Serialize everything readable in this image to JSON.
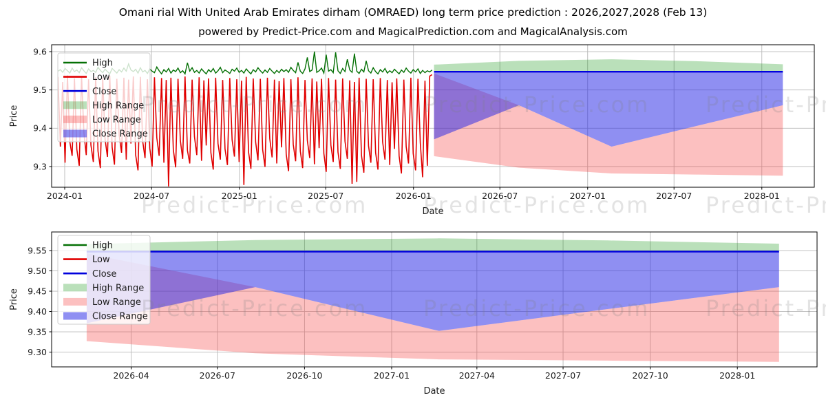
{
  "page": {
    "title": "Omani rial With United Arab Emirates dirham (OMRAED) long term price prediction : 2026,2027,2028 (Feb 13)",
    "subtitle": "powered by Predict-Price.com and MagicalPrediction.com and MagicalAnalysis.com",
    "background": "#ffffff"
  },
  "watermark": {
    "text": "Predict-Price.com"
  },
  "colors": {
    "high": "#047004",
    "low": "#e00000",
    "close": "#0000dd",
    "high_range": "rgba(0,140,0,0.27)",
    "low_range": "rgba(245,70,70,0.34)",
    "close_range": "rgba(40,40,230,0.52)",
    "grid": "#b8b8b8",
    "spine": "#000000",
    "text": "#1a1a1a"
  },
  "legend_items": [
    {
      "label": "High",
      "kind": "line",
      "color_key": "high"
    },
    {
      "label": "Low",
      "kind": "line",
      "color_key": "low"
    },
    {
      "label": "Close",
      "kind": "line",
      "color_key": "close"
    },
    {
      "label": "High Range",
      "kind": "patch",
      "color_key": "high_range"
    },
    {
      "label": "Low Range",
      "kind": "patch",
      "color_key": "low_range"
    },
    {
      "label": "Close Range",
      "kind": "patch",
      "color_key": "close_range"
    }
  ],
  "chart_data": {
    "type": "line",
    "title": "Omani rial With United Arab Emirates dirham (OMRAED) long term price prediction : 2026,2027,2028 (Feb 13)",
    "day_zero": "2024-01-01",
    "historical": {
      "start_date": "2023-12-18",
      "end_date": "2026-02-13",
      "first_day_offset": -14,
      "step_days": 4.93,
      "high": [
        9.549,
        9.553,
        9.546,
        9.556,
        9.55,
        9.544,
        9.557,
        9.548,
        9.552,
        9.545,
        9.558,
        9.55,
        9.543,
        9.555,
        9.548,
        9.551,
        9.546,
        9.559,
        9.551,
        9.545,
        9.554,
        9.548,
        9.542,
        9.556,
        9.55,
        9.544,
        9.553,
        9.547,
        9.557,
        9.549,
        9.568,
        9.552,
        9.548,
        9.554,
        9.544,
        9.558,
        9.547,
        9.551,
        9.543,
        9.555,
        9.549,
        9.545,
        9.56,
        9.55,
        9.542,
        9.553,
        9.547,
        9.556,
        9.544,
        9.552,
        9.548,
        9.557,
        9.545,
        9.55,
        9.542,
        9.571,
        9.549,
        9.558,
        9.546,
        9.551,
        9.544,
        9.555,
        9.548,
        9.542,
        9.553,
        9.547,
        9.556,
        9.544,
        9.55,
        9.559,
        9.545,
        9.552,
        9.548,
        9.543,
        9.554,
        9.549,
        9.557,
        9.546,
        9.551,
        9.544,
        9.555,
        9.548,
        9.542,
        9.553,
        9.547,
        9.558,
        9.55,
        9.544,
        9.552,
        9.546,
        9.556,
        9.549,
        9.543,
        9.551,
        9.545,
        9.554,
        9.548,
        9.553,
        9.546,
        9.559,
        9.551,
        9.545,
        9.572,
        9.549,
        9.543,
        9.555,
        9.585,
        9.548,
        9.552,
        9.6,
        9.546,
        9.55,
        9.557,
        9.544,
        9.592,
        9.549,
        9.553,
        9.545,
        9.598,
        9.55,
        9.543,
        9.556,
        9.548,
        9.58,
        9.552,
        9.546,
        9.595,
        9.549,
        9.543,
        9.554,
        9.547,
        9.576,
        9.55,
        9.544,
        9.558,
        9.548,
        9.542,
        9.553,
        9.547,
        9.556,
        9.544,
        9.55,
        9.545,
        9.554,
        9.548,
        9.542,
        9.552,
        9.546,
        9.557,
        9.549,
        9.544,
        9.553,
        9.547,
        9.555,
        9.543,
        9.551,
        9.545,
        9.55,
        9.547,
        9.552
      ],
      "low": [
        9.534,
        9.352,
        9.521,
        9.31,
        9.538,
        9.365,
        9.328,
        9.53,
        9.345,
        9.302,
        9.536,
        9.388,
        9.33,
        9.528,
        9.356,
        9.312,
        9.533,
        9.34,
        9.296,
        9.531,
        9.372,
        9.325,
        9.537,
        9.35,
        9.305,
        9.529,
        9.382,
        9.336,
        9.532,
        9.318,
        9.527,
        9.36,
        9.535,
        9.33,
        9.29,
        9.534,
        9.366,
        9.322,
        9.528,
        9.348,
        9.3,
        9.533,
        9.375,
        9.328,
        9.531,
        9.31,
        9.526,
        9.248,
        9.532,
        9.344,
        9.298,
        9.529,
        9.368,
        9.32,
        9.535,
        9.342,
        9.308,
        9.527,
        9.378,
        9.33,
        9.533,
        9.315,
        9.525,
        9.355,
        9.53,
        9.336,
        9.292,
        9.532,
        9.36,
        9.318,
        9.526,
        9.346,
        9.304,
        9.531,
        9.37,
        9.326,
        9.528,
        9.312,
        9.524,
        9.252,
        9.534,
        9.338,
        9.294,
        9.53,
        9.364,
        9.316,
        9.529,
        9.344,
        9.299,
        9.532,
        9.373,
        9.324,
        9.527,
        9.308,
        9.523,
        9.35,
        9.531,
        9.332,
        9.288,
        9.528,
        9.358,
        9.314,
        9.533,
        9.34,
        9.296,
        9.526,
        9.368,
        9.322,
        9.53,
        9.306,
        9.522,
        9.348,
        9.529,
        9.334,
        9.286,
        9.531,
        9.356,
        9.312,
        9.527,
        9.338,
        9.294,
        9.53,
        9.366,
        9.32,
        9.525,
        9.255,
        9.521,
        9.26,
        9.532,
        9.33,
        9.284,
        9.529,
        9.354,
        9.31,
        9.528,
        9.336,
        9.292,
        9.531,
        9.364,
        9.318,
        9.526,
        9.304,
        9.52,
        9.346,
        9.53,
        9.328,
        9.282,
        9.527,
        9.352,
        9.308,
        9.532,
        9.334,
        9.29,
        9.529,
        9.362,
        9.272,
        9.524,
        9.302,
        9.536,
        9.54
      ]
    },
    "prediction": {
      "start_date": "2026-02-13",
      "end_date": "2028-02-13",
      "start_day_offset": 774,
      "t_days": [
        0,
        178,
        372,
        550,
        731
      ],
      "close": [
        9.5475,
        9.5475,
        9.5475,
        9.5475,
        9.5475
      ],
      "high_range_top": [
        9.566,
        9.576,
        9.58,
        9.575,
        9.567
      ],
      "high_range_bottom": [
        9.549,
        9.549,
        9.549,
        9.549,
        9.549
      ],
      "close_range_top": [
        9.5475,
        9.5475,
        9.5475,
        9.5475,
        9.5475
      ],
      "close_range_bottom": [
        9.371,
        9.46,
        9.352,
        9.406,
        9.46
      ],
      "low_range_top": [
        9.543,
        9.46,
        9.352,
        9.406,
        9.46
      ],
      "low_range_bottom": [
        9.327,
        9.297,
        9.282,
        9.279,
        9.276
      ]
    },
    "axes": [
      {
        "name": "top",
        "ylabel": "Price",
        "xlabel": "Date",
        "ylim": [
          9.246,
          9.618
        ],
        "y_ticks": [
          9.3,
          9.4,
          9.5,
          9.6
        ],
        "y_tick_labels": [
          "9.3",
          "9.4",
          "9.5",
          "9.6"
        ],
        "x_tick_days": [
          0,
          182,
          366,
          547,
          731,
          912,
          1096,
          1277,
          1461
        ],
        "x_tick_labels": [
          "2024-01",
          "2024-07",
          "2025-01",
          "2025-07",
          "2026-01",
          "2026-07",
          "2027-01",
          "2027-07",
          "2028-01"
        ],
        "show_historical": true,
        "grid": true,
        "legend_position": "upper left"
      },
      {
        "name": "bottom",
        "ylabel": "Price",
        "xlabel": "Date",
        "ylim": [
          9.2636,
          9.5958
        ],
        "y_ticks": [
          9.3,
          9.35,
          9.4,
          9.45,
          9.5,
          9.55
        ],
        "y_tick_labels": [
          "9.30",
          "9.35",
          "9.40",
          "9.45",
          "9.50",
          "9.55"
        ],
        "x_tick_days": [
          821,
          912,
          1004,
          1096,
          1186,
          1277,
          1369,
          1461
        ],
        "x_tick_labels": [
          "2026-04",
          "2026-07",
          "2026-10",
          "2027-01",
          "2027-04",
          "2027-07",
          "2027-10",
          "2028-01"
        ],
        "show_historical": false,
        "grid": true,
        "legend_position": "upper left"
      }
    ]
  }
}
